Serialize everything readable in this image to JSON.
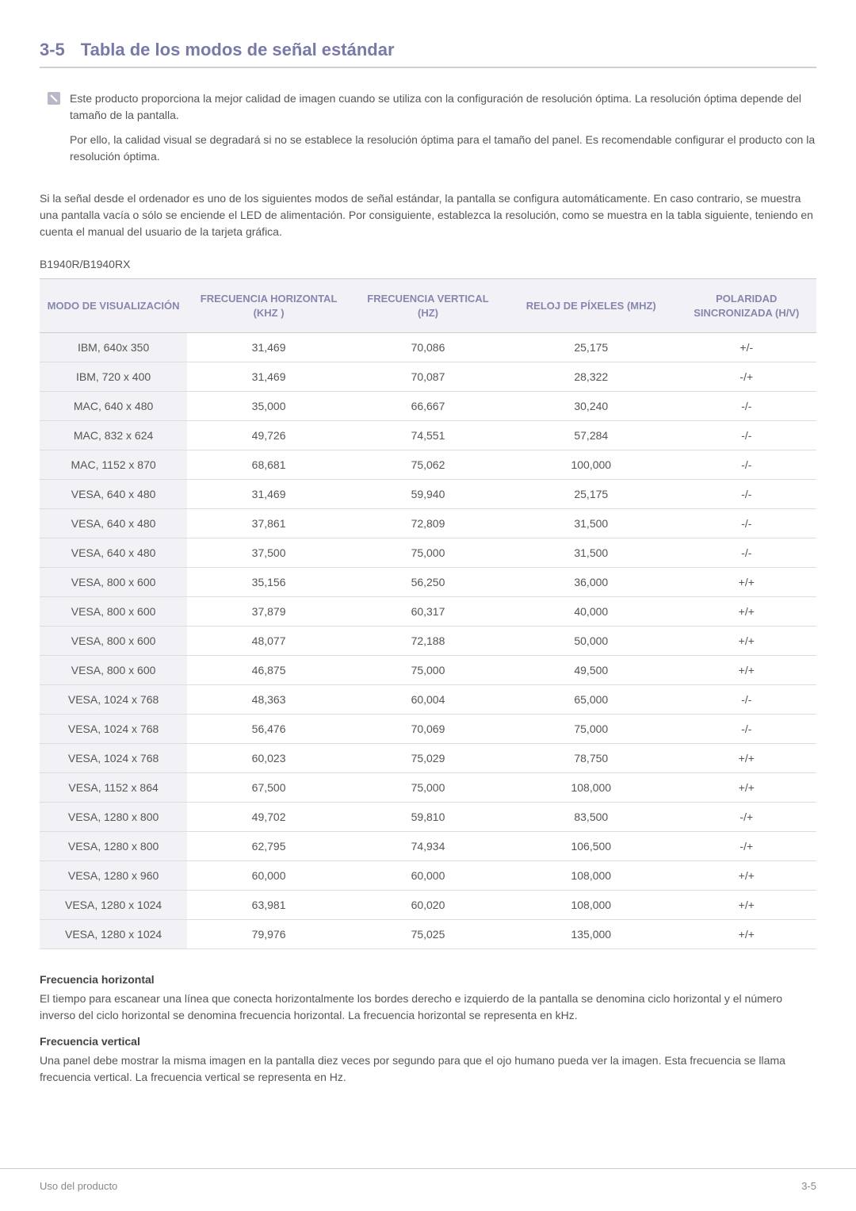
{
  "header": {
    "section_number": "3-5",
    "section_title": "Tabla de los modos de señal estándar"
  },
  "note": {
    "p1": "Este producto proporciona la mejor calidad de imagen cuando se utiliza con la configuración de resolución óptima. La resolución óptima depende del tamaño de la pantalla.",
    "p2": "Por ello, la calidad visual se degradará si no se establece la resolución óptima para el tamaño del panel. Es recomendable configurar el producto con la resolución óptima."
  },
  "intro": "Si la señal desde el ordenador es uno de los siguientes modos de señal estándar, la pantalla se configura automáticamente. En caso contrario, se muestra una pantalla vacía o sólo se enciende el LED de alimentación. Por consiguiente, establezca la resolución, como se muestra en la tabla siguiente, teniendo en cuenta el manual del usuario de la tarjeta gráfica.",
  "model": "B1940R/B1940RX",
  "table": {
    "columns": [
      "MODO DE VISUALIZACIÓN",
      "FRECUENCIA HORIZONTAL (KHZ )",
      "FRECUENCIA VERTICAL (HZ)",
      "RELOJ DE PÍXELES (MHZ)",
      "POLARIDAD SINCRONIZADA (H/V)"
    ],
    "col_widths": [
      "19%",
      "21%",
      "20%",
      "22%",
      "18%"
    ],
    "header_bg": "#f2f2f6",
    "header_color": "#8686b0",
    "rows": [
      [
        "IBM, 640x 350",
        "31,469",
        "70,086",
        "25,175",
        "+/-"
      ],
      [
        "IBM, 720 x 400",
        "31,469",
        "70,087",
        "28,322",
        "-/+"
      ],
      [
        "MAC, 640 x 480",
        "35,000",
        "66,667",
        "30,240",
        "-/-"
      ],
      [
        "MAC, 832 x 624",
        "49,726",
        "74,551",
        "57,284",
        "-/-"
      ],
      [
        "MAC, 1152 x 870",
        "68,681",
        "75,062",
        "100,000",
        "-/-"
      ],
      [
        "VESA, 640 x 480",
        "31,469",
        "59,940",
        "25,175",
        "-/-"
      ],
      [
        "VESA, 640 x 480",
        "37,861",
        "72,809",
        "31,500",
        "-/-"
      ],
      [
        "VESA, 640 x 480",
        "37,500",
        "75,000",
        "31,500",
        "-/-"
      ],
      [
        "VESA, 800 x 600",
        "35,156",
        "56,250",
        "36,000",
        "+/+"
      ],
      [
        "VESA, 800 x 600",
        "37,879",
        "60,317",
        "40,000",
        "+/+"
      ],
      [
        "VESA, 800 x 600",
        "48,077",
        "72,188",
        "50,000",
        "+/+"
      ],
      [
        "VESA, 800 x 600",
        "46,875",
        "75,000",
        "49,500",
        "+/+"
      ],
      [
        "VESA, 1024 x 768",
        "48,363",
        "60,004",
        "65,000",
        "-/-"
      ],
      [
        "VESA, 1024 x 768",
        "56,476",
        "70,069",
        "75,000",
        "-/-"
      ],
      [
        "VESA, 1024 x 768",
        "60,023",
        "75,029",
        "78,750",
        "+/+"
      ],
      [
        "VESA, 1152 x 864",
        "67,500",
        "75,000",
        "108,000",
        "+/+"
      ],
      [
        "VESA, 1280 x 800",
        "49,702",
        "59,810",
        "83,500",
        "-/+"
      ],
      [
        "VESA, 1280 x 800",
        "62,795",
        "74,934",
        "106,500",
        "-/+"
      ],
      [
        "VESA, 1280 x 960",
        "60,000",
        "60,000",
        "108,000",
        "+/+"
      ],
      [
        "VESA, 1280 x 1024",
        "63,981",
        "60,020",
        "108,000",
        "+/+"
      ],
      [
        "VESA, 1280 x 1024",
        "79,976",
        "75,025",
        "135,000",
        "+/+"
      ]
    ]
  },
  "defs": {
    "h_title": "Frecuencia horizontal",
    "h_text": "El tiempo para escanear una línea que conecta horizontalmente los bordes derecho e izquierdo de la pantalla se denomina ciclo horizontal y el número inverso del ciclo horizontal se denomina frecuencia horizontal. La frecuencia horizontal se representa en kHz.",
    "v_title": "Frecuencia vertical",
    "v_text": "Una panel debe mostrar la misma imagen en la pantalla diez veces por segundo para que el ojo humano pueda ver la imagen. Esta frecuencia se llama frecuencia vertical. La frecuencia vertical se representa en Hz."
  },
  "footer": {
    "left": "Uso del producto",
    "right": "3-5"
  }
}
